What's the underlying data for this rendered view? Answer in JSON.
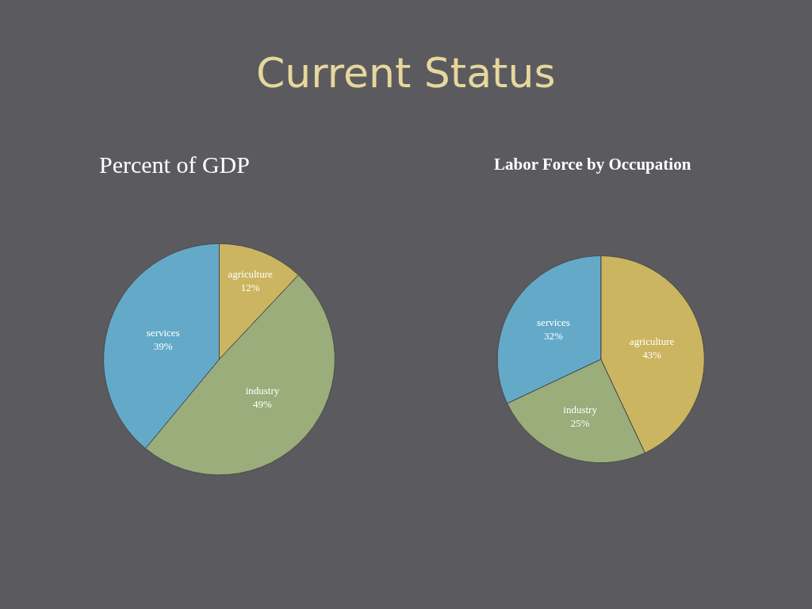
{
  "chart_data": [
    {
      "type": "pie",
      "title": "Percent of GDP",
      "annotations": [
        "Current Status"
      ],
      "categories": [
        "agriculture",
        "industry",
        "services"
      ],
      "values": [
        12,
        49,
        39
      ],
      "value_labels": [
        "12%",
        "49%",
        "39%"
      ],
      "colors": [
        "#cbb560",
        "#9aad7a",
        "#64aac8"
      ],
      "legend": false
    },
    {
      "type": "pie",
      "title": "Labor Force by Occupation",
      "categories": [
        "agriculture",
        "industry",
        "services"
      ],
      "values": [
        43,
        25,
        32
      ],
      "value_labels": [
        "43%",
        "25%",
        "32%"
      ],
      "colors": [
        "#cbb560",
        "#9aad7a",
        "#64aac8"
      ],
      "legend": false
    }
  ]
}
